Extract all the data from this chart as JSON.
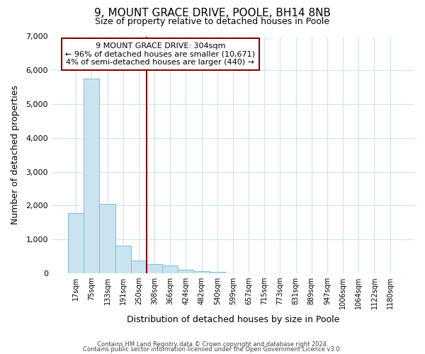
{
  "title": "9, MOUNT GRACE DRIVE, POOLE, BH14 8NB",
  "subtitle": "Size of property relative to detached houses in Poole",
  "xlabel": "Distribution of detached houses by size in Poole",
  "ylabel": "Number of detached properties",
  "bar_color": "#c9e4f0",
  "bar_edge_color": "#7bbdd4",
  "vline_color": "#8b0000",
  "vline_x_index": 5,
  "annotation_line1": "9 MOUNT GRACE DRIVE: 304sqm",
  "annotation_line2": "← 96% of detached houses are smaller (10,671)",
  "annotation_line3": "4% of semi-detached houses are larger (440) →",
  "annotation_box_edgecolor": "#8b0000",
  "bin_labels": [
    "17sqm",
    "75sqm",
    "133sqm",
    "191sqm",
    "250sqm",
    "308sqm",
    "366sqm",
    "424sqm",
    "482sqm",
    "540sqm",
    "599sqm",
    "657sqm",
    "715sqm",
    "773sqm",
    "831sqm",
    "889sqm",
    "947sqm",
    "1006sqm",
    "1064sqm",
    "1122sqm",
    "1180sqm"
  ],
  "bar_heights": [
    1770,
    5750,
    2050,
    820,
    370,
    265,
    220,
    110,
    55,
    30,
    0,
    0,
    0,
    0,
    0,
    0,
    0,
    0,
    0,
    0,
    0
  ],
  "ylim": [
    0,
    7000
  ],
  "yticks": [
    0,
    1000,
    2000,
    3000,
    4000,
    5000,
    6000,
    7000
  ],
  "grid_color": "#cce4f0",
  "background_color": "#ffffff",
  "footer_line1": "Contains HM Land Registry data © Crown copyright and database right 2024.",
  "footer_line2": "Contains public sector information licensed under the Open Government Licence v3.0."
}
